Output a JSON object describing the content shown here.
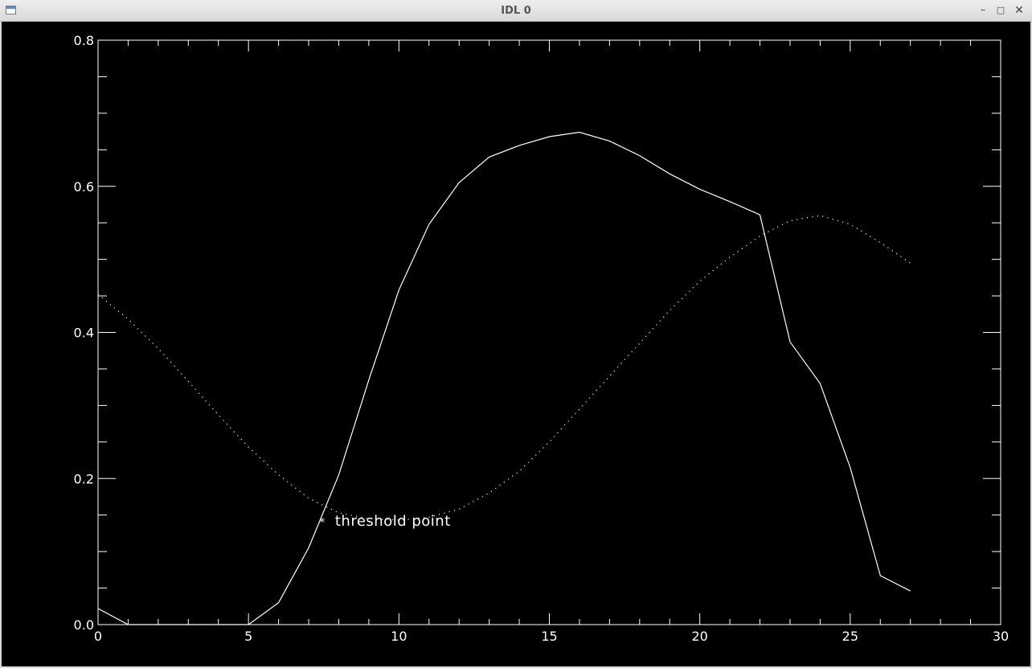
{
  "window": {
    "title": "IDL 0",
    "controls": {
      "minimize": "–",
      "maximize": "□",
      "close": "✕"
    }
  },
  "colors": {
    "background": "#000000",
    "foreground": "#ffffff"
  },
  "chart_data": {
    "type": "line",
    "title": "",
    "xlabel": "",
    "ylabel": "",
    "xlim": [
      0,
      30
    ],
    "ylim": [
      0.0,
      0.8
    ],
    "x_ticks": [
      0,
      5,
      10,
      15,
      20,
      25,
      30
    ],
    "x_tick_labels": [
      "0",
      "5",
      "10",
      "15",
      "20",
      "25",
      "30"
    ],
    "x_minor_step": 1,
    "y_ticks": [
      0.0,
      0.2,
      0.4,
      0.6,
      0.8
    ],
    "y_tick_labels": [
      "0.0",
      "0.2",
      "0.4",
      "0.6",
      "0.8"
    ],
    "y_minor_step": 0.05,
    "grid": false,
    "series": [
      {
        "style": "solid",
        "points": [
          [
            0,
            0.022
          ],
          [
            1,
            0.0
          ],
          [
            2,
            0.0
          ],
          [
            3,
            0.0
          ],
          [
            4,
            0.0
          ],
          [
            5,
            0.0
          ],
          [
            6,
            0.03
          ],
          [
            7,
            0.105
          ],
          [
            8,
            0.205
          ],
          [
            9,
            0.335
          ],
          [
            10,
            0.458
          ],
          [
            11,
            0.548
          ],
          [
            12,
            0.605
          ],
          [
            13,
            0.64
          ],
          [
            14,
            0.656
          ],
          [
            15,
            0.668
          ],
          [
            16,
            0.674
          ],
          [
            17,
            0.662
          ],
          [
            18,
            0.642
          ],
          [
            19,
            0.617
          ],
          [
            20,
            0.596
          ],
          [
            21,
            0.579
          ],
          [
            22,
            0.561
          ],
          [
            23,
            0.387
          ],
          [
            24,
            0.33
          ],
          [
            25,
            0.215
          ],
          [
            26,
            0.067
          ],
          [
            27,
            0.046
          ]
        ]
      },
      {
        "style": "dotted",
        "points": [
          [
            0,
            0.452
          ],
          [
            1,
            0.418
          ],
          [
            2,
            0.378
          ],
          [
            3,
            0.333
          ],
          [
            4,
            0.287
          ],
          [
            5,
            0.243
          ],
          [
            6,
            0.205
          ],
          [
            7,
            0.173
          ],
          [
            8,
            0.153
          ],
          [
            9,
            0.145
          ],
          [
            10,
            0.143
          ],
          [
            11,
            0.147
          ],
          [
            12,
            0.158
          ],
          [
            13,
            0.18
          ],
          [
            14,
            0.21
          ],
          [
            15,
            0.25
          ],
          [
            16,
            0.295
          ],
          [
            17,
            0.34
          ],
          [
            18,
            0.385
          ],
          [
            19,
            0.43
          ],
          [
            20,
            0.47
          ],
          [
            21,
            0.503
          ],
          [
            22,
            0.532
          ],
          [
            23,
            0.553
          ],
          [
            24,
            0.56
          ],
          [
            25,
            0.548
          ],
          [
            26,
            0.523
          ],
          [
            27,
            0.495
          ]
        ]
      }
    ],
    "annotations": [
      {
        "text": "threshold point",
        "marker": "*",
        "x": 7.45,
        "y": 0.142
      }
    ]
  }
}
